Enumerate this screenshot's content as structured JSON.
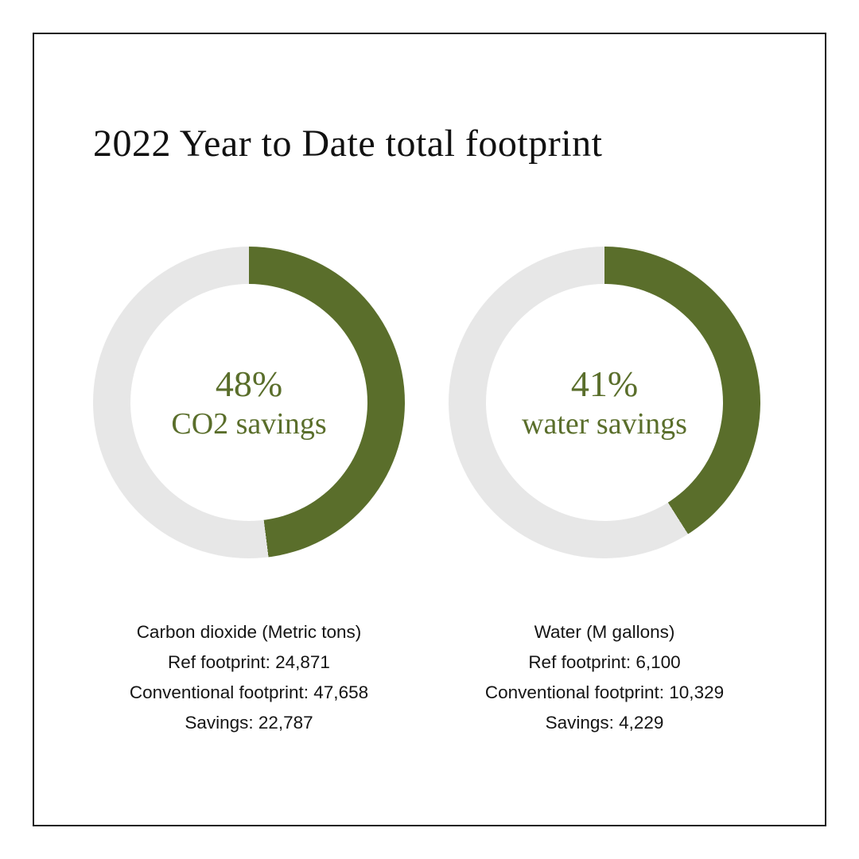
{
  "page": {
    "title": "2022 Year to Date total footprint"
  },
  "colors": {
    "accent_green": "#5a6e2b",
    "track_gray": "#e7e7e7",
    "text_dark": "#141414"
  },
  "chart_data": [
    {
      "type": "pie",
      "variant": "donut",
      "title": "CO2 savings",
      "percent": 48,
      "center_value": "48%",
      "center_label": "CO2 savings",
      "units": "Metric tons",
      "slices": [
        {
          "label": "CO2 savings",
          "percent": 48,
          "color": "#5a6e2b"
        },
        {
          "label": "remaining",
          "percent": 52,
          "color": "#e7e7e7"
        }
      ],
      "caption": {
        "heading": "Carbon dioxide (Metric tons)",
        "lines": [
          "Ref footprint: 24,871",
          "Conventional footprint: 47,658",
          "Savings: 22,787"
        ]
      },
      "values": {
        "ref_footprint": 24871,
        "conventional_footprint": 47658,
        "savings": 22787
      }
    },
    {
      "type": "pie",
      "variant": "donut",
      "title": "water savings",
      "percent": 41,
      "center_value": "41%",
      "center_label": "water savings",
      "units": "M gallons",
      "slices": [
        {
          "label": "water savings",
          "percent": 41,
          "color": "#5a6e2b"
        },
        {
          "label": "remaining",
          "percent": 59,
          "color": "#e7e7e7"
        }
      ],
      "caption": {
        "heading": "Water (M gallons)",
        "lines": [
          "Ref footprint: 6,100",
          "Conventional footprint: 10,329",
          "Savings: 4,229"
        ]
      },
      "values": {
        "ref_footprint": 6100,
        "conventional_footprint": 10329,
        "savings": 4229
      }
    }
  ]
}
